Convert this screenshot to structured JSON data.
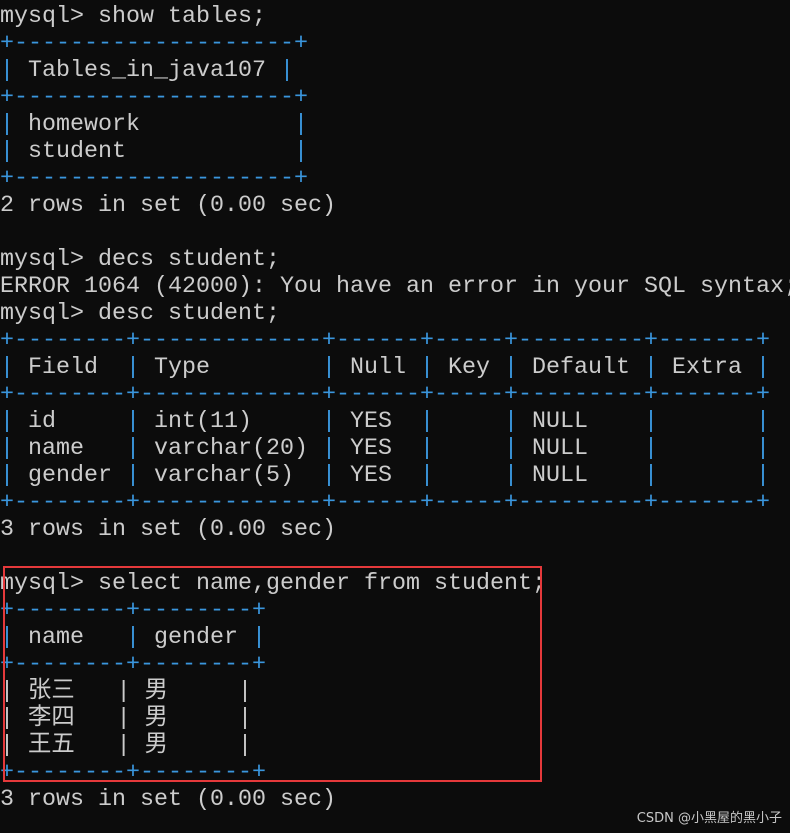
{
  "colors": {
    "background": "#0c0c0c",
    "text": "#cccccc",
    "table_border": "#3a96dd",
    "highlight_box": "#e5393b"
  },
  "terminal": {
    "lines": [
      {
        "text": "mysql> show tables;"
      },
      {
        "text": "+--------------------+",
        "table": true
      },
      {
        "text": "| Tables_in_java107 |",
        "table": true
      },
      {
        "text": "+--------------------+",
        "table": true
      },
      {
        "text": "| homework           |",
        "table": true
      },
      {
        "text": "| student            |",
        "table": true
      },
      {
        "text": "+--------------------+",
        "table": true
      },
      {
        "text": "2 rows in set (0.00 sec)"
      },
      {
        "text": ""
      },
      {
        "text": "mysql> decs student;"
      },
      {
        "text": "ERROR 1064 (42000): You have an error in your SQL syntax;"
      },
      {
        "text": "mysql> desc student;"
      },
      {
        "text": "+--------+-------------+------+-----+---------+-------+",
        "table": true
      },
      {
        "text": "| Field  | Type        | Null | Key | Default | Extra |",
        "table": true
      },
      {
        "text": "+--------+-------------+------+-----+---------+-------+",
        "table": true
      },
      {
        "text": "| id     | int(11)     | YES  |     | NULL    |       |",
        "table": true
      },
      {
        "text": "| name   | varchar(20) | YES  |     | NULL    |       |",
        "table": true
      },
      {
        "text": "| gender | varchar(5)  | YES  |     | NULL    |       |",
        "table": true
      },
      {
        "text": "+--------+-------------+------+-----+---------+-------+",
        "table": true
      },
      {
        "text": "3 rows in set (0.00 sec)"
      },
      {
        "text": ""
      },
      {
        "text": "mysql> select name,gender from student;"
      },
      {
        "text": "+--------+--------+",
        "table": true
      },
      {
        "text": "| name   | gender |",
        "table": true
      },
      {
        "text": "+--------+--------+",
        "table": true
      },
      {
        "text": "| 张三   | 男     |",
        "table": true
      },
      {
        "text": "| 李四   | 男     |",
        "table": true
      },
      {
        "text": "| 王五   | 男     |",
        "table": true
      },
      {
        "text": "+--------+--------+",
        "table": true
      },
      {
        "text": "3 rows in set (0.00 sec)"
      }
    ]
  },
  "watermark": "CSDN @小黑屋的黑小子"
}
